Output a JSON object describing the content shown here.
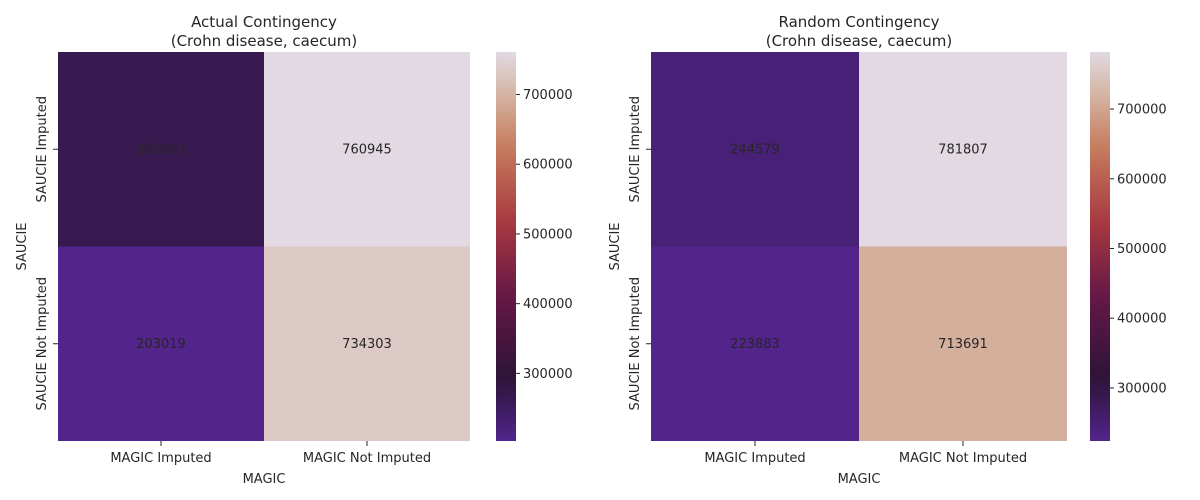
{
  "chart_data": [
    {
      "type": "heatmap",
      "title": "Actual Contingency\n(Crohn disease, caecum)",
      "xlabel": "MAGIC",
      "ylabel": "SAUCIE",
      "x_categories": [
        "MAGIC Imputed",
        "MAGIC Not Imputed"
      ],
      "y_categories": [
        "SAUCIE Imputed",
        "SAUCIE Not Imputed"
      ],
      "values": [
        [
          265693,
          760945
        ],
        [
          203019,
          734303
        ]
      ],
      "colorbar": {
        "min": 203019,
        "max": 760945,
        "ticks": [
          300000,
          400000,
          500000,
          600000,
          700000
        ],
        "tick_labels": [
          "300000",
          "400000",
          "500000",
          "600000",
          "700000"
        ]
      },
      "colormap": "twilight"
    },
    {
      "type": "heatmap",
      "title": "Random Contingency\n(Crohn disease, caecum)",
      "xlabel": "MAGIC",
      "ylabel": "SAUCIE",
      "x_categories": [
        "MAGIC Imputed",
        "MAGIC Not Imputed"
      ],
      "y_categories": [
        "SAUCIE Imputed",
        "SAUCIE Not Imputed"
      ],
      "values": [
        [
          244579,
          781807
        ],
        [
          223883,
          713691
        ]
      ],
      "colorbar": {
        "min": 223883,
        "max": 781807,
        "ticks": [
          300000,
          400000,
          500000,
          600000,
          700000
        ],
        "tick_labels": [
          "300000",
          "400000",
          "500000",
          "600000",
          "700000"
        ]
      },
      "colormap": "twilight"
    }
  ]
}
